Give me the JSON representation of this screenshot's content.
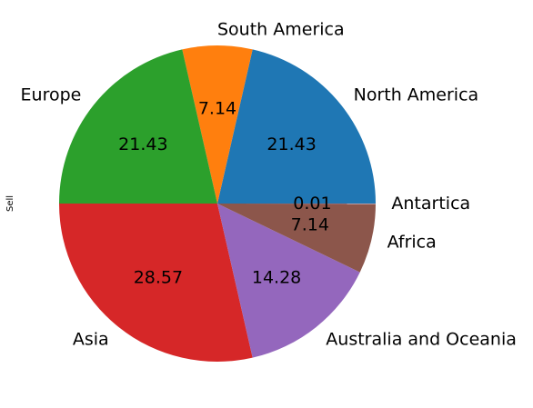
{
  "chart_data": {
    "type": "pie",
    "title": "",
    "ylabel": "Sell",
    "start_angle": 0,
    "direction": "counterclockwise",
    "slices": [
      {
        "label": "North America",
        "value": 21.43,
        "pct_label": "21.43",
        "color": "#1f77b4"
      },
      {
        "label": "South America",
        "value": 7.14,
        "pct_label": "7.14",
        "color": "#ff7f0e"
      },
      {
        "label": "Europe",
        "value": 21.43,
        "pct_label": "21.43",
        "color": "#2ca02c"
      },
      {
        "label": "Asia",
        "value": 28.57,
        "pct_label": "28.57",
        "color": "#d62728"
      },
      {
        "label": "Australia and Oceania",
        "value": 14.28,
        "pct_label": "14.28",
        "color": "#9467bd"
      },
      {
        "label": "Africa",
        "value": 7.14,
        "pct_label": "7.14",
        "color": "#8c564b"
      },
      {
        "label": "Antartica",
        "value": 0.01,
        "pct_label": "0.01",
        "color": "#e377c2"
      }
    ]
  }
}
